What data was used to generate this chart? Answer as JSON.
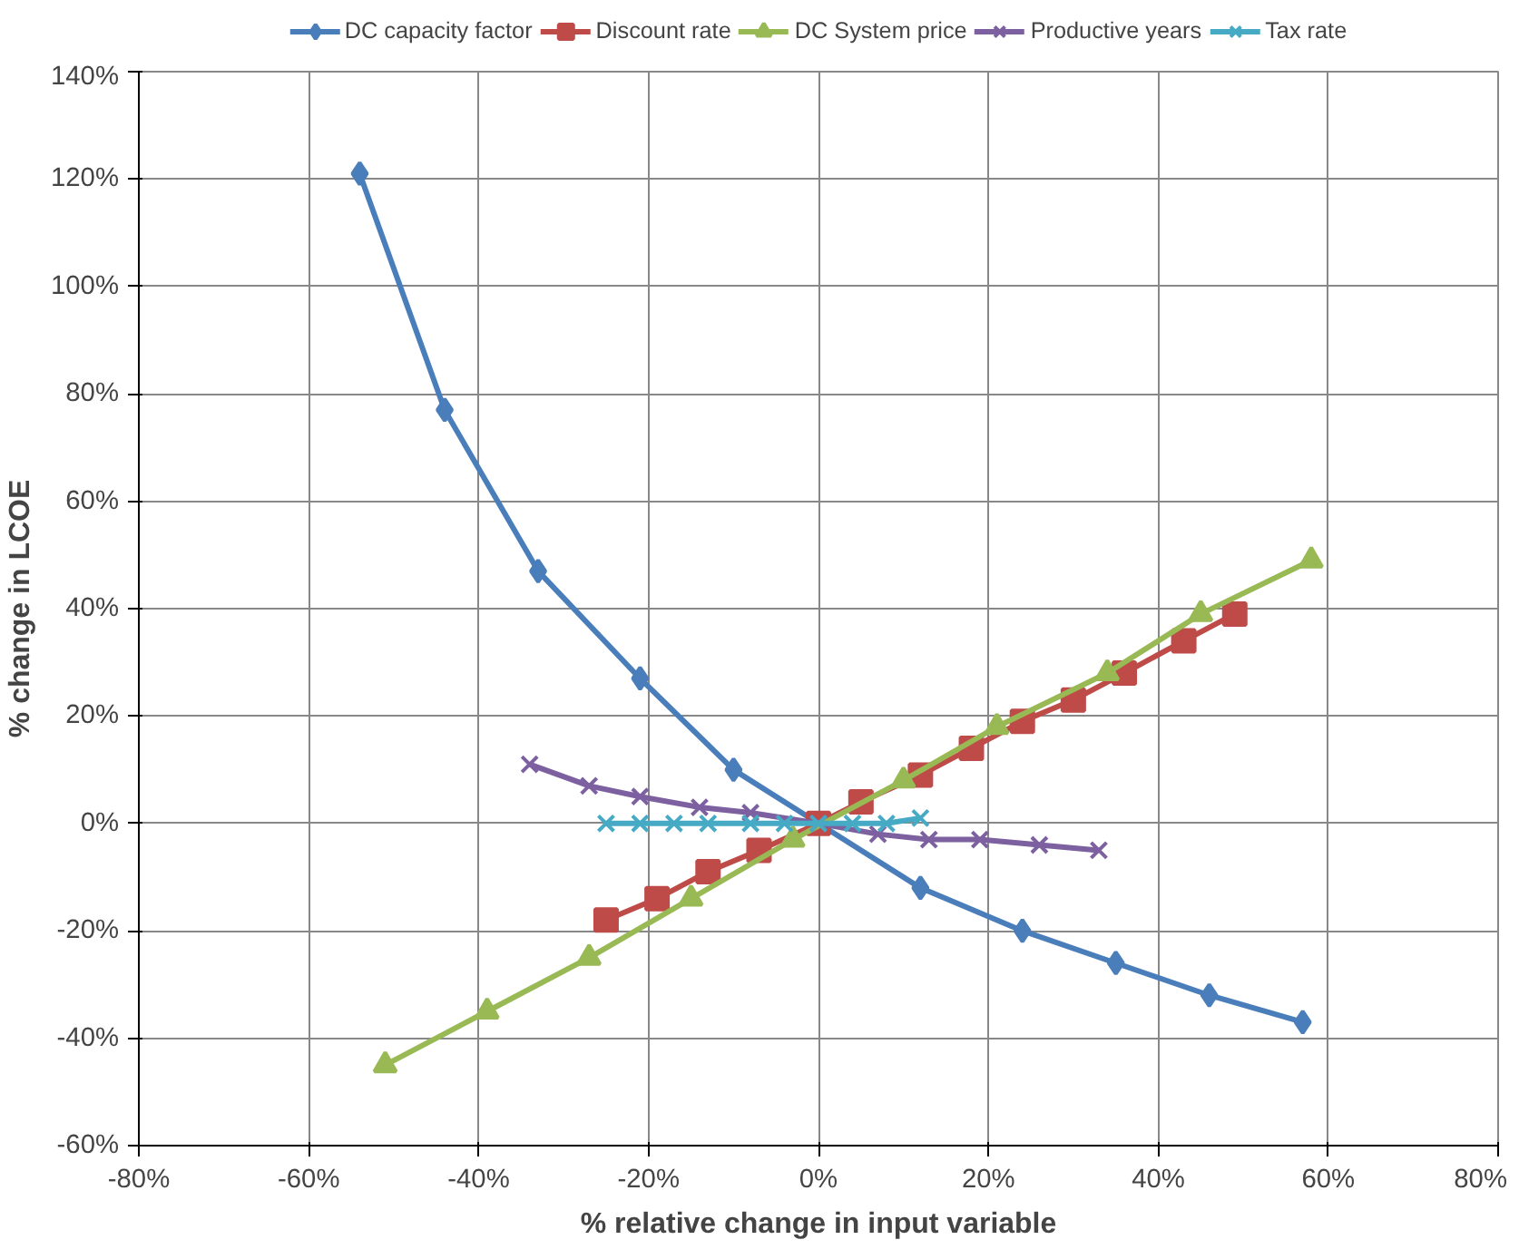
{
  "chart_data": {
    "type": "line",
    "xlabel": "% relative change in input variable",
    "ylabel": "% change in LCOE",
    "xlim": [
      -80,
      80
    ],
    "ylim": [
      -60,
      140
    ],
    "xticks": [
      {
        "value": -80,
        "label": "-80%"
      },
      {
        "value": -60,
        "label": "-60%"
      },
      {
        "value": -40,
        "label": "-40%"
      },
      {
        "value": -20,
        "label": "-20%"
      },
      {
        "value": 0,
        "label": "0%"
      },
      {
        "value": 20,
        "label": "20%"
      },
      {
        "value": 40,
        "label": "40%"
      },
      {
        "value": 60,
        "label": "60%"
      },
      {
        "value": 80,
        "label": "80%"
      }
    ],
    "yticks": [
      {
        "value": -60,
        "label": "-60%"
      },
      {
        "value": -40,
        "label": "-40%"
      },
      {
        "value": -20,
        "label": "-20%"
      },
      {
        "value": 0,
        "label": "0%"
      },
      {
        "value": 20,
        "label": "20%"
      },
      {
        "value": 40,
        "label": "40%"
      },
      {
        "value": 60,
        "label": "60%"
      },
      {
        "value": 80,
        "label": "80%"
      },
      {
        "value": 100,
        "label": "100%"
      },
      {
        "value": 120,
        "label": "120%"
      },
      {
        "value": 140,
        "label": "140%"
      }
    ],
    "grid": true,
    "legend": "top",
    "line_style": "solid",
    "series": [
      {
        "name": "DC capacity factor",
        "color": "#4a7ebb",
        "marker": "diamond",
        "x": [
          -54,
          -44,
          -33,
          -21,
          -10,
          0,
          12,
          24,
          35,
          46,
          57
        ],
        "values": [
          121,
          77,
          47,
          27,
          10,
          0,
          -12,
          -20,
          -26,
          -32,
          -37
        ]
      },
      {
        "name": "Discount rate",
        "color": "#be4b48",
        "marker": "square",
        "x": [
          -25,
          -19,
          -13,
          -7,
          0,
          5,
          12,
          18,
          24,
          30,
          36,
          43,
          49
        ],
        "values": [
          -18,
          -14,
          -9,
          -5,
          0,
          4,
          9,
          14,
          19,
          23,
          28,
          34,
          39
        ]
      },
      {
        "name": "DC System price",
        "color": "#98b954",
        "marker": "triangle",
        "x": [
          -51,
          -39,
          -27,
          -15,
          -3,
          10,
          21,
          34,
          45,
          58
        ],
        "values": [
          -45,
          -35,
          -25,
          -14,
          -3,
          8,
          18,
          28,
          39,
          49
        ]
      },
      {
        "name": "Productive years",
        "color": "#7d60a0",
        "marker": "cross",
        "x": [
          -34,
          -27,
          -21,
          -14,
          -8,
          0,
          7,
          13,
          19,
          26,
          33
        ],
        "values": [
          11,
          7,
          5,
          3,
          2,
          0,
          -2,
          -3,
          -3,
          -4,
          -5
        ]
      },
      {
        "name": "Tax rate",
        "color": "#46aac5",
        "marker": "cross",
        "x": [
          -25,
          -21,
          -17,
          -13,
          -8,
          -4,
          0,
          4,
          8,
          12
        ],
        "values": [
          0,
          0,
          0,
          0,
          0,
          0,
          0,
          0,
          0,
          1
        ]
      }
    ]
  }
}
